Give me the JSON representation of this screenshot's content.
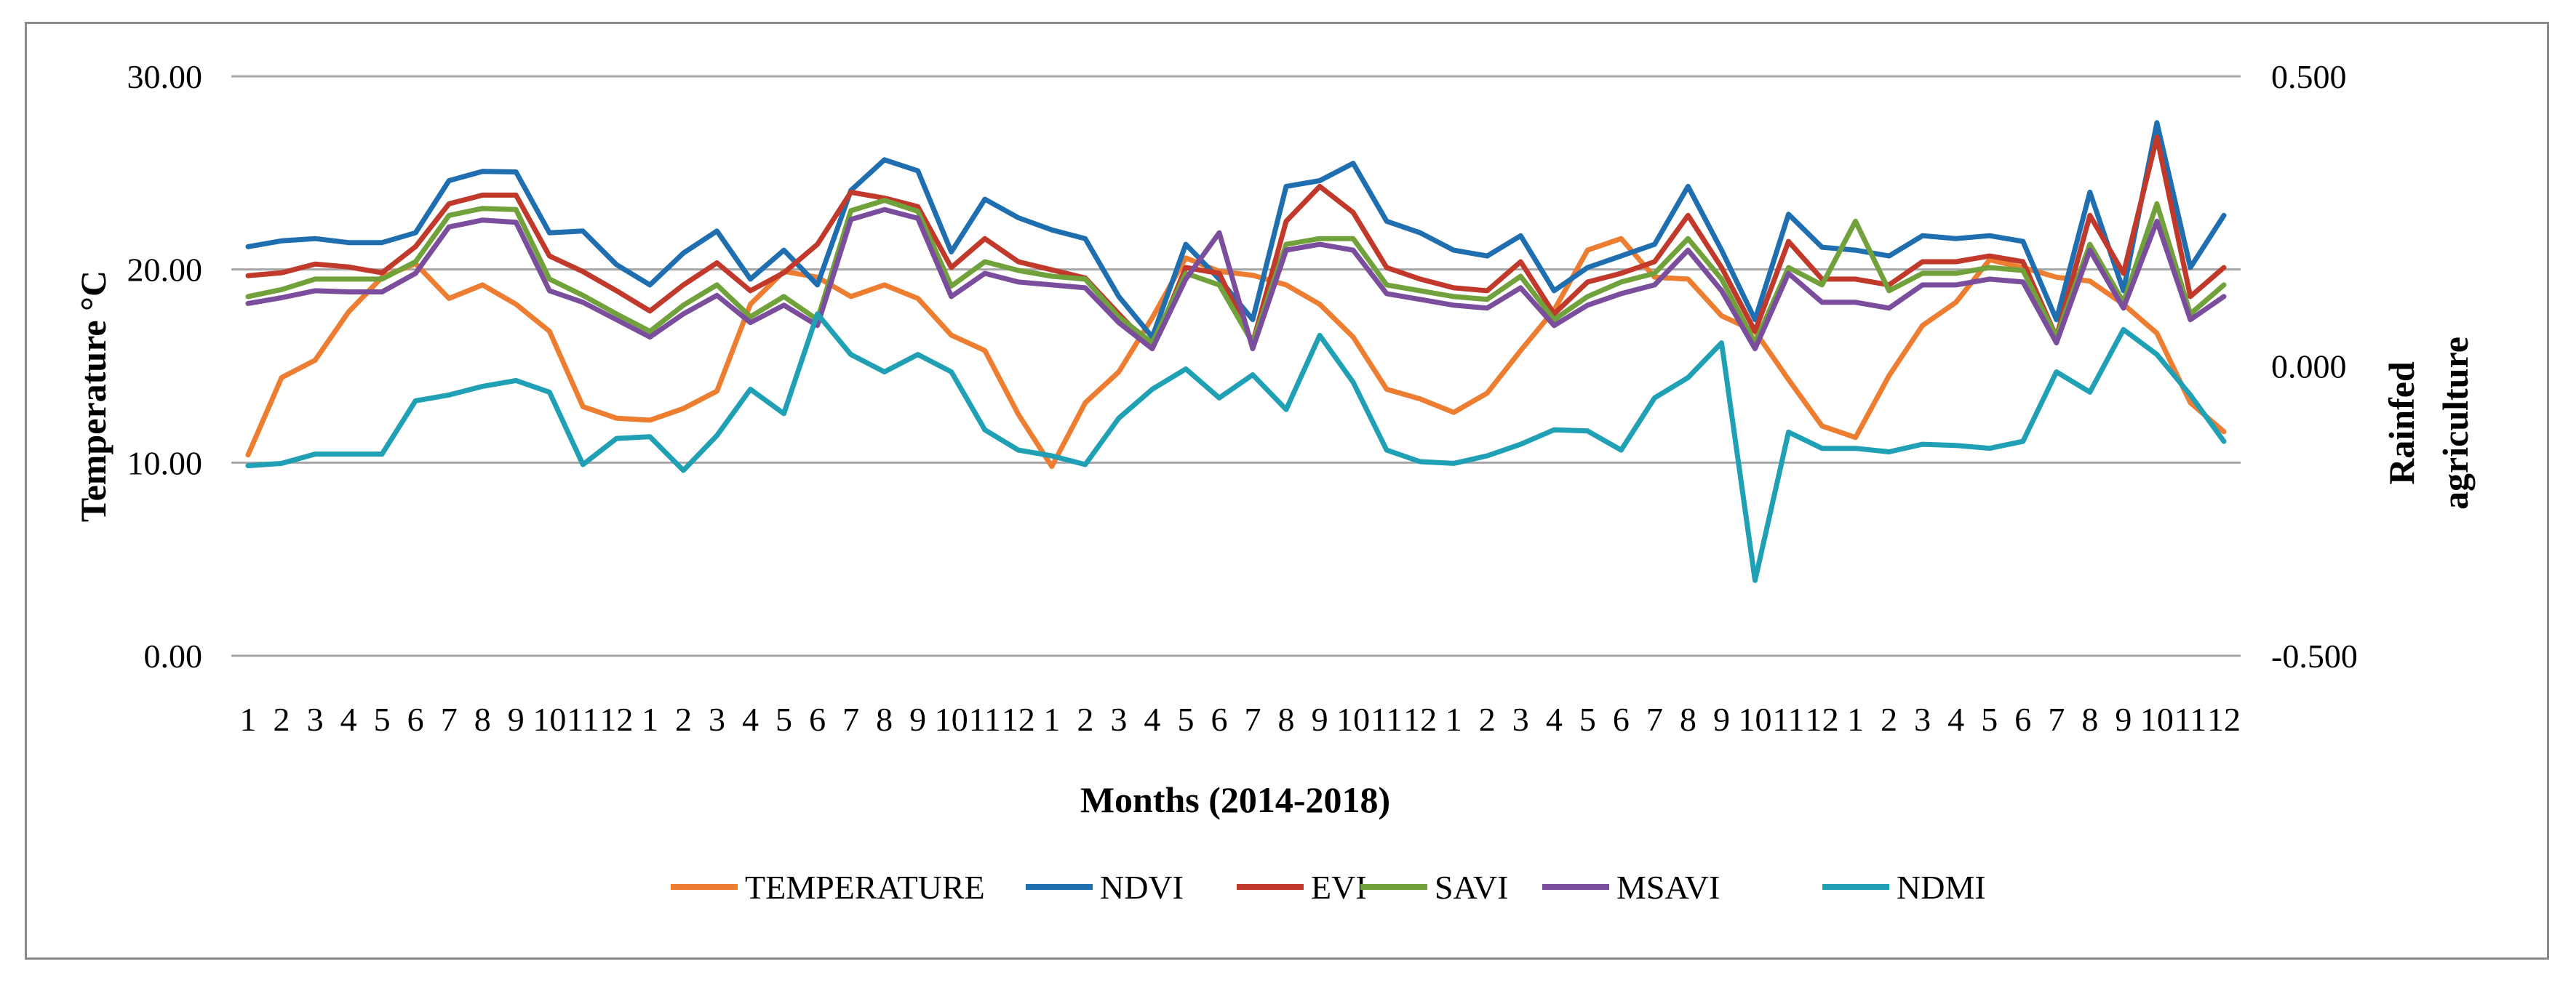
{
  "chart_data": {
    "type": "line",
    "title": "",
    "xlabel": "Months (2014-2018)",
    "ylabel": "Temperature °C",
    "y2label_lines": [
      "Rainfed",
      "agriculture"
    ],
    "ylim": [
      0,
      30
    ],
    "y2lim": [
      -0.5,
      0.5
    ],
    "yticks": [
      "0.00",
      "10.00",
      "20.00",
      "30.00"
    ],
    "y2ticks": [
      "-0.500",
      "0.000",
      "0.500"
    ],
    "grid": true,
    "legend_position": "bottom",
    "x": [
      "1",
      "2",
      "3",
      "4",
      "5",
      "6",
      "7",
      "8",
      "9",
      "10",
      "11",
      "12",
      "1",
      "2",
      "3",
      "4",
      "5",
      "6",
      "7",
      "8",
      "9",
      "10",
      "11",
      "12",
      "1",
      "2",
      "3",
      "4",
      "5",
      "6",
      "7",
      "8",
      "9",
      "10",
      "11",
      "12",
      "1",
      "2",
      "3",
      "4",
      "5",
      "6",
      "7",
      "8",
      "9",
      "10",
      "11",
      "12",
      "1",
      "2",
      "3",
      "4",
      "5",
      "6",
      "7",
      "8",
      "9",
      "10",
      "11",
      "12"
    ],
    "series": [
      {
        "name": "TEMPERATURE",
        "axis": "left",
        "color": "#ED7D31",
        "values": [
          10.4,
          14.4,
          15.3,
          17.8,
          19.6,
          20.3,
          18.5,
          19.2,
          18.2,
          16.8,
          12.9,
          12.3,
          12.2,
          12.8,
          13.7,
          18.2,
          19.9,
          19.6,
          18.6,
          19.2,
          18.5,
          16.6,
          15.8,
          12.5,
          9.8,
          13.1,
          14.7,
          17.5,
          20.6,
          19.9,
          19.7,
          19.2,
          18.2,
          16.5,
          13.8,
          13.3,
          12.6,
          13.6,
          15.8,
          17.9,
          21.0,
          21.6,
          19.6,
          19.5,
          17.6,
          16.8,
          14.3,
          11.9,
          11.3,
          14.5,
          17.1,
          18.3,
          20.5,
          20.1,
          19.6,
          19.4,
          18.2,
          16.7,
          13.1,
          11.6
        ]
      },
      {
        "name": "NDVI",
        "axis": "right",
        "color": "#1F6EB0",
        "values": [
          0.206,
          0.216,
          0.22,
          0.213,
          0.213,
          0.23,
          0.32,
          0.336,
          0.335,
          0.23,
          0.233,
          0.175,
          0.14,
          0.195,
          0.233,
          0.15,
          0.2,
          0.14,
          0.303,
          0.356,
          0.337,
          0.197,
          0.288,
          0.256,
          0.235,
          0.22,
          0.12,
          0.05,
          0.21,
          0.15,
          0.08,
          0.31,
          0.32,
          0.35,
          0.25,
          0.23,
          0.2,
          0.19,
          0.225,
          0.13,
          0.17,
          0.19,
          0.21,
          0.31,
          0.2,
          0.08,
          0.262,
          0.205,
          0.2,
          0.19,
          0.225,
          0.22,
          0.225,
          0.215,
          0.08,
          0.3,
          0.13,
          0.42,
          0.17,
          0.26
        ]
      },
      {
        "name": "EVI",
        "axis": "right",
        "color": "#C0392B",
        "values": [
          0.156,
          0.161,
          0.176,
          0.171,
          0.161,
          0.206,
          0.28,
          0.295,
          0.295,
          0.19,
          0.163,
          0.13,
          0.095,
          0.14,
          0.178,
          0.13,
          0.161,
          0.21,
          0.3,
          0.29,
          0.275,
          0.17,
          0.22,
          0.18,
          0.166,
          0.152,
          0.09,
          0.03,
          0.17,
          0.16,
          0.04,
          0.25,
          0.31,
          0.265,
          0.17,
          0.15,
          0.135,
          0.13,
          0.18,
          0.09,
          0.145,
          0.16,
          0.18,
          0.26,
          0.17,
          0.06,
          0.215,
          0.15,
          0.15,
          0.14,
          0.18,
          0.18,
          0.19,
          0.18,
          0.05,
          0.26,
          0.16,
          0.395,
          0.12,
          0.17
        ]
      },
      {
        "name": "SAVI",
        "axis": "right",
        "color": "#70A13B",
        "values": [
          0.12,
          0.132,
          0.15,
          0.15,
          0.15,
          0.18,
          0.26,
          0.272,
          0.27,
          0.15,
          0.122,
          0.09,
          0.06,
          0.105,
          0.14,
          0.085,
          0.12,
          0.08,
          0.268,
          0.286,
          0.267,
          0.138,
          0.18,
          0.165,
          0.155,
          0.15,
          0.085,
          0.04,
          0.16,
          0.14,
          0.04,
          0.21,
          0.22,
          0.22,
          0.14,
          0.13,
          0.12,
          0.115,
          0.155,
          0.08,
          0.12,
          0.145,
          0.16,
          0.22,
          0.15,
          0.04,
          0.17,
          0.14,
          0.25,
          0.13,
          0.16,
          0.16,
          0.17,
          0.165,
          0.05,
          0.21,
          0.11,
          0.28,
          0.09,
          0.14
        ]
      },
      {
        "name": "MSAVI",
        "axis": "right",
        "color": "#7A4E9C",
        "values": [
          0.108,
          0.118,
          0.13,
          0.128,
          0.128,
          0.16,
          0.24,
          0.252,
          0.248,
          0.13,
          0.11,
          0.08,
          0.05,
          0.09,
          0.122,
          0.075,
          0.105,
          0.07,
          0.253,
          0.27,
          0.255,
          0.12,
          0.16,
          0.145,
          0.14,
          0.135,
          0.075,
          0.03,
          0.15,
          0.23,
          0.03,
          0.2,
          0.21,
          0.2,
          0.125,
          0.115,
          0.105,
          0.1,
          0.135,
          0.07,
          0.105,
          0.125,
          0.14,
          0.2,
          0.13,
          0.03,
          0.16,
          0.11,
          0.11,
          0.1,
          0.14,
          0.14,
          0.15,
          0.145,
          0.04,
          0.2,
          0.1,
          0.25,
          0.08,
          0.12
        ]
      },
      {
        "name": "NDMI",
        "axis": "right",
        "color": "#1FA0B4",
        "values": [
          -0.172,
          -0.168,
          -0.152,
          -0.152,
          -0.152,
          -0.06,
          -0.05,
          -0.035,
          -0.025,
          -0.045,
          -0.17,
          -0.125,
          -0.122,
          -0.18,
          -0.12,
          -0.04,
          -0.082,
          0.09,
          0.02,
          -0.01,
          0.02,
          -0.01,
          -0.11,
          -0.145,
          -0.155,
          -0.17,
          -0.09,
          -0.04,
          -0.005,
          -0.055,
          -0.015,
          -0.075,
          0.053,
          -0.028,
          -0.145,
          -0.165,
          -0.168,
          -0.155,
          -0.135,
          -0.11,
          -0.112,
          -0.145,
          -0.055,
          -0.02,
          0.04,
          -0.37,
          -0.114,
          -0.142,
          -0.142,
          -0.148,
          -0.135,
          -0.137,
          -0.142,
          -0.13,
          -0.01,
          -0.045,
          0.063,
          0.02,
          -0.05,
          -0.13
        ]
      }
    ]
  }
}
